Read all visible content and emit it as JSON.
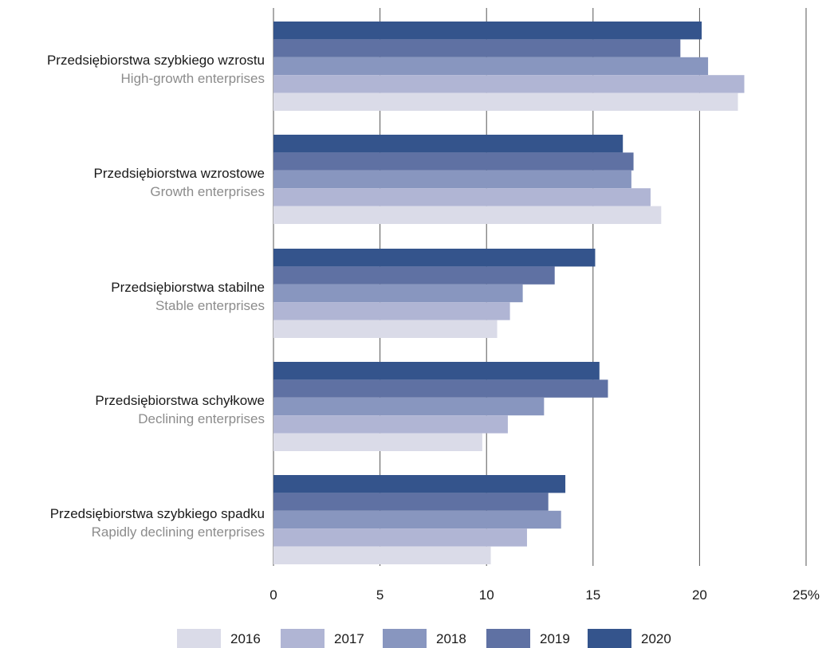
{
  "chart_data": {
    "type": "bar",
    "orientation": "horizontal",
    "categories": [
      {
        "label": "Przedsiębiorstwa szybkiego wzrostu",
        "sublabel": "High-growth enterprises"
      },
      {
        "label": "Przedsiębiorstwa wzrostowe",
        "sublabel": "Growth enterprises"
      },
      {
        "label": "Przedsiębiorstwa stabilne",
        "sublabel": "Stable enterprises"
      },
      {
        "label": "Przedsiębiorstwa schyłkowe",
        "sublabel": "Declining enterprises"
      },
      {
        "label": "Przedsiębiorstwa szybkiego spadku",
        "sublabel": "Rapidly declining enterprises"
      }
    ],
    "series": [
      {
        "name": "2020",
        "color": "#34548c",
        "values": [
          20.1,
          16.4,
          15.1,
          15.3,
          13.7
        ]
      },
      {
        "name": "2019",
        "color": "#5f71a3",
        "values": [
          19.1,
          16.9,
          13.2,
          15.7,
          12.9
        ]
      },
      {
        "name": "2018",
        "color": "#8896bf",
        "values": [
          20.4,
          16.8,
          11.7,
          12.7,
          13.5
        ]
      },
      {
        "name": "2017",
        "color": "#b0b5d4",
        "values": [
          22.1,
          17.7,
          11.1,
          11.0,
          11.9
        ]
      },
      {
        "name": "2016",
        "color": "#dadbe8",
        "values": [
          21.8,
          18.2,
          10.5,
          9.8,
          10.2
        ]
      }
    ],
    "xlim": [
      0,
      25
    ],
    "xticks": [
      "0",
      "5",
      "10",
      "15",
      "20",
      "25%"
    ],
    "tick_values": [
      0,
      5,
      10,
      15,
      20,
      25
    ],
    "legend_order": [
      "2016",
      "2017",
      "2018",
      "2019",
      "2020"
    ],
    "legend_position": "bottom",
    "grid": "vertical",
    "gridline_color": "#555555"
  }
}
